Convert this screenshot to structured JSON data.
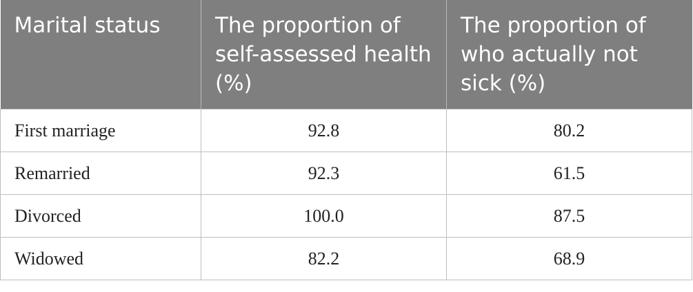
{
  "table": {
    "header": [
      "Marital status",
      "The proportion of self-assessed health (%)",
      "The proportion of who actually not sick (%)"
    ],
    "rows": [
      [
        "First marriage",
        "92.8",
        "80.2"
      ],
      [
        "Remarried",
        "92.3",
        "61.5"
      ],
      [
        "Divorced",
        "100.0",
        "87.5"
      ],
      [
        "Widowed",
        "82.2",
        "68.9"
      ]
    ]
  }
}
